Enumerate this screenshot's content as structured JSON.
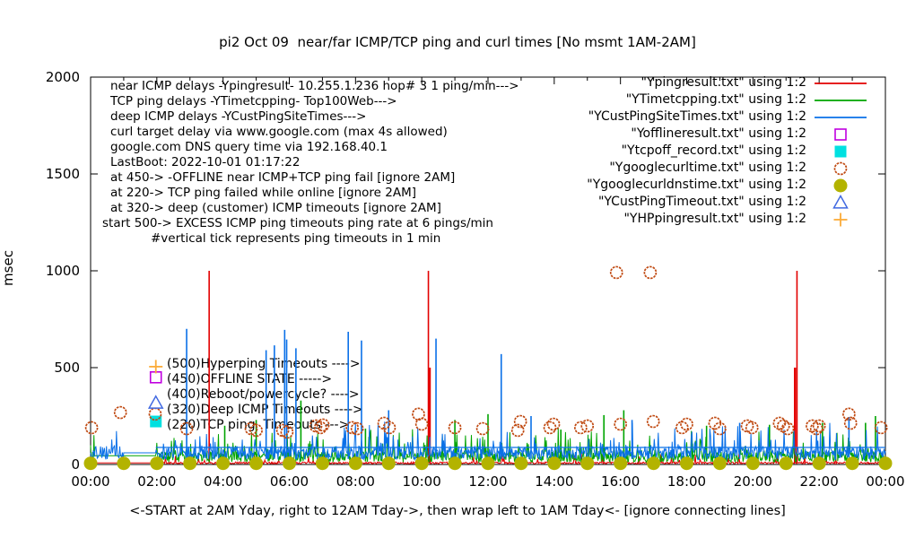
{
  "title": "pi2 Oct 09  near/far ICMP/TCP ping and curl times [No msmt 1AM-2AM]",
  "ylabel": "msec",
  "xlabel": "<-START at 2AM Yday, right to 12AM Tday->, then wrap left to 1AM Tday<- [ignore connecting lines]",
  "chart_data": {
    "type": "line",
    "xlabel": "<-START at 2AM Yday, right to 12AM Tday->, then wrap left to 1AM Tday<- [ignore connecting lines]",
    "ylabel": "msec",
    "ylim": [
      0,
      2000
    ],
    "xlim_hours": [
      0,
      24
    ],
    "grid": false,
    "legend_position": "top-right-outside-plot",
    "x_ticks": [
      "00:00",
      "02:00",
      "04:00",
      "06:00",
      "08:00",
      "10:00",
      "12:00",
      "14:00",
      "16:00",
      "18:00",
      "20:00",
      "22:00",
      "00:00"
    ],
    "y_ticks": [
      0,
      500,
      1000,
      1500,
      2000
    ],
    "annotations": [
      {
        "text": "near ICMP delays -Ypingresult- 10.255.1.236 hop# 3 1 ping/min--->",
        "x": 123,
        "y": 96
      },
      {
        "text": "TCP ping delays -YTimetcpping- Top100Web--->",
        "x": 123,
        "y": 113
      },
      {
        "text": "deep ICMP delays -YCustPingSiteTimes--->",
        "x": 123,
        "y": 130
      },
      {
        "text": "curl target delay via www.google.com (max 4s allowed)",
        "x": 123,
        "y": 147
      },
      {
        "text": "google.com DNS query time via 192.168.40.1",
        "x": 123,
        "y": 164
      },
      {
        "text": "LastBoot: 2022-10-01 01:17:22",
        "x": 123,
        "y": 181
      },
      {
        "text": "at 450-> -OFFLINE near ICMP+TCP ping fail [ignore 2AM]",
        "x": 123,
        "y": 198
      },
      {
        "text": "at 220-> TCP ping failed while online [ignore 2AM]",
        "x": 123,
        "y": 215
      },
      {
        "text": "at 320-> deep (customer) ICMP timeouts [ignore 2AM]",
        "x": 123,
        "y": 232
      },
      {
        "text": "start 500-> EXCESS ICMP ping timeouts ping rate at 6 pings/min",
        "x": 114,
        "y": 249
      },
      {
        "text": "#vertical tick represents ping timeouts in 1 min",
        "x": 168,
        "y": 266
      }
    ],
    "marker_labels": [
      {
        "text": "(500)Hyperping Timeouts ---->",
        "x": 186,
        "y": 406
      },
      {
        "text": "(450)OFFLINE STATE ----->",
        "x": 186,
        "y": 423
      },
      {
        "text": "(400)Reboot/powercycle? ---->",
        "x": 186,
        "y": 440
      },
      {
        "text": "(320)Deep ICMP Timeouts ---->",
        "x": 186,
        "y": 457
      },
      {
        "text": "(220)TCP ping  Timeouts --->",
        "x": 186,
        "y": 474
      }
    ],
    "series": [
      {
        "name": "Ypingresult",
        "legend_label": "\"Ypingresult.txt\" using 1:2",
        "kind": "noise-line",
        "color": "#e30000",
        "seed": 11,
        "baseline": 3,
        "noise_amp": 10,
        "spike_chance": 0.06,
        "spike_amp": 50,
        "gap": {
          "from": 0.0,
          "to": 1.97,
          "value": 8
        },
        "spikes": [
          [
            3.58,
            1000
          ],
          [
            10.2,
            1000
          ],
          [
            10.24,
            500
          ],
          [
            21.27,
            500
          ],
          [
            21.33,
            1000
          ]
        ]
      },
      {
        "name": "YTimetcpping",
        "legend_label": "\"YTimetcpping.txt\" using 1:2",
        "kind": "noise-line",
        "color": "#00a400",
        "seed": 23,
        "baseline": 12,
        "noise_amp": 55,
        "spike_chance": 0.1,
        "spike_amp": 130,
        "gap": {
          "from": 0.1,
          "to": 1.97,
          "value": 45
        },
        "spikes": [
          [
            4.05,
            200
          ],
          [
            5.0,
            230
          ],
          [
            6.35,
            330
          ],
          [
            8.3,
            185
          ],
          [
            11.0,
            230
          ],
          [
            12.0,
            260
          ],
          [
            14.2,
            180
          ],
          [
            15.5,
            255
          ],
          [
            16.1,
            280
          ],
          [
            18.6,
            200
          ],
          [
            20.5,
            205
          ],
          [
            22.1,
            215
          ],
          [
            23.4,
            215
          ],
          [
            23.7,
            250
          ]
        ]
      },
      {
        "name": "YCustPingSiteTimes",
        "legend_label": "\"YCustPingSiteTimes.txt\" using 1:2",
        "kind": "noise-line",
        "color": "#0a70e8",
        "seed": 37,
        "baseline": 25,
        "noise_amp": 70,
        "spike_chance": 0.12,
        "spike_amp": 130,
        "gap": {
          "from": 1.0,
          "to": 1.97,
          "value": 60
        },
        "hline": {
          "value": 88,
          "from": 1.97,
          "to": 24
        },
        "spikes": [
          [
            2.9,
            700
          ],
          [
            5.3,
            590
          ],
          [
            5.55,
            615
          ],
          [
            5.86,
            695
          ],
          [
            5.92,
            645
          ],
          [
            6.2,
            600
          ],
          [
            7.78,
            685
          ],
          [
            8.18,
            640
          ],
          [
            9.0,
            280
          ],
          [
            10.43,
            650
          ],
          [
            12.4,
            570
          ],
          [
            13.3,
            250
          ],
          [
            16.35,
            230
          ],
          [
            19.6,
            215
          ],
          [
            22.9,
            245
          ]
        ]
      },
      {
        "name": "Yofflineresult",
        "legend_label": "\"Yofflineresult.txt\" using 1:2",
        "kind": "points",
        "marker": "square-open",
        "color": "#c000e0",
        "size": 12,
        "points": [
          [
            1.97,
            450
          ]
        ]
      },
      {
        "name": "Ytcpoff_record",
        "legend_label": "\"Ytcpoff_record.txt\" using 1:2",
        "kind": "points",
        "marker": "square-filled",
        "color": "#00e0e0",
        "size": 13,
        "points": [
          [
            1.97,
            222
          ]
        ]
      },
      {
        "name": "Ygooglecurltime",
        "legend_label": "\"Ygooglecurltime.txt\" using 1:2",
        "kind": "points",
        "marker": "circle-open",
        "color": "#c04a12",
        "size": 13,
        "points": [
          [
            0.03,
            190
          ],
          [
            0.9,
            268
          ],
          [
            1.95,
            260
          ],
          [
            2.9,
            185
          ],
          [
            4.85,
            185
          ],
          [
            5.0,
            176
          ],
          [
            5.8,
            176
          ],
          [
            5.93,
            167
          ],
          [
            6.8,
            199
          ],
          [
            6.94,
            190
          ],
          [
            7.02,
            204
          ],
          [
            7.9,
            190
          ],
          [
            8.05,
            185
          ],
          [
            8.86,
            213
          ],
          [
            9.02,
            190
          ],
          [
            9.9,
            260
          ],
          [
            10.0,
            208
          ],
          [
            11.0,
            190
          ],
          [
            11.84,
            185
          ],
          [
            12.9,
            176
          ],
          [
            12.98,
            222
          ],
          [
            13.87,
            190
          ],
          [
            13.98,
            208
          ],
          [
            14.8,
            190
          ],
          [
            15.0,
            199
          ],
          [
            15.88,
            991
          ],
          [
            16.0,
            208
          ],
          [
            16.9,
            991
          ],
          [
            16.99,
            222
          ],
          [
            17.86,
            190
          ],
          [
            18.0,
            208
          ],
          [
            18.85,
            213
          ],
          [
            19.0,
            185
          ],
          [
            19.83,
            199
          ],
          [
            19.97,
            190
          ],
          [
            20.8,
            213
          ],
          [
            20.92,
            199
          ],
          [
            21.05,
            185
          ],
          [
            21.79,
            199
          ],
          [
            21.92,
            185
          ],
          [
            22.0,
            199
          ],
          [
            22.9,
            260
          ],
          [
            22.95,
            213
          ],
          [
            23.87,
            190
          ]
        ]
      },
      {
        "name": "Ygooglecurldnstime",
        "legend_label": "\"Ygooglecurldnstime.txt\" using 1:2",
        "kind": "points",
        "marker": "circle-filled",
        "color": "#b3b300",
        "size": 15,
        "hourly_value": 6,
        "points": [
          [
            0,
            6
          ],
          [
            1,
            6
          ],
          [
            2,
            6
          ],
          [
            3,
            6
          ],
          [
            4,
            6
          ],
          [
            5,
            6
          ],
          [
            6,
            6
          ],
          [
            7,
            6
          ],
          [
            8,
            6
          ],
          [
            9,
            6
          ],
          [
            10,
            6
          ],
          [
            11,
            6
          ],
          [
            12,
            6
          ],
          [
            13,
            6
          ],
          [
            14,
            6
          ],
          [
            15,
            6
          ],
          [
            16,
            6
          ],
          [
            17,
            6
          ],
          [
            18,
            6
          ],
          [
            19,
            6
          ],
          [
            20,
            6
          ],
          [
            21,
            6
          ],
          [
            22,
            6
          ],
          [
            23,
            6
          ],
          [
            24,
            6
          ]
        ]
      },
      {
        "name": "YCustPingTimeout",
        "legend_label": "\"YCustPingTimeout.txt\" using 1:2",
        "kind": "points",
        "marker": "triangle-open",
        "color": "#4169e1",
        "size": 15,
        "points": [
          [
            1.97,
            318
          ]
        ]
      },
      {
        "name": "YHPpingresult",
        "legend_label": "\"YHPpingresult.txt\" using 1:2",
        "kind": "points",
        "marker": "plus",
        "color": "#fbab38",
        "size": 15,
        "points": [
          [
            1.97,
            505
          ]
        ]
      }
    ]
  }
}
